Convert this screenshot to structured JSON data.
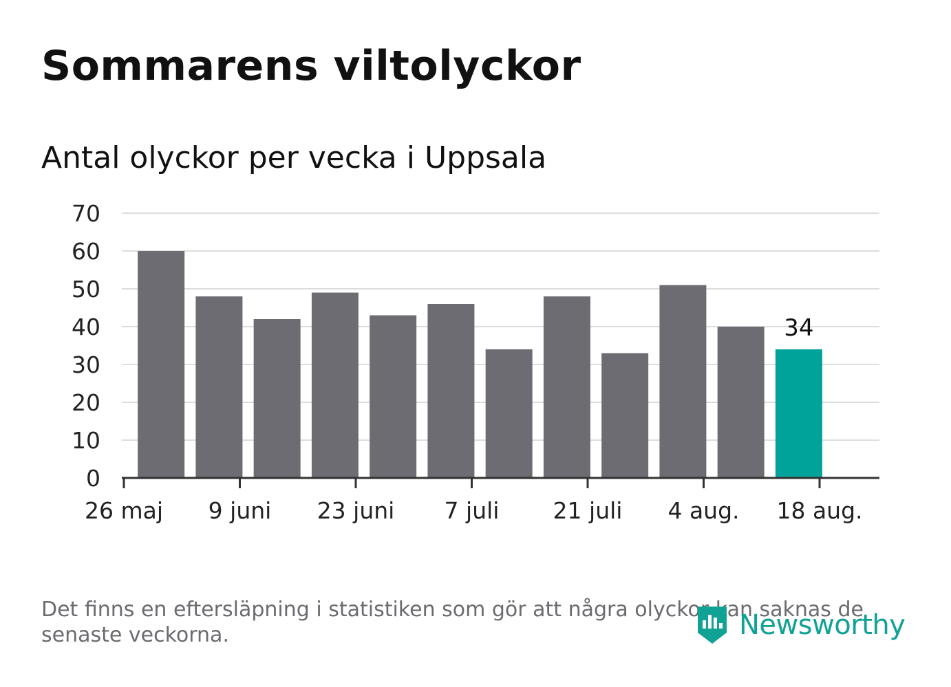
{
  "title": "Sommarens viltolyckor",
  "subtitle": "Antal olyckor per vecka i Uppsala",
  "note": "Det finns en eftersläpning i statistiken som gör att några olyckor kan saknas de senaste veckorna.",
  "brand": {
    "name": "Newsworthy",
    "icon": "newsworthy-logo-icon",
    "color": "#10a294"
  },
  "colors": {
    "bar": "#6d6c72",
    "highlight": "#00a39a",
    "grid": "#dddddd",
    "axis": "#333333"
  },
  "chart_data": {
    "type": "bar",
    "title": "Sommarens viltolyckor",
    "subtitle": "Antal olyckor per vecka i Uppsala",
    "xlabel": "",
    "ylabel": "",
    "ylim": [
      0,
      70
    ],
    "yticks": [
      0,
      10,
      20,
      30,
      40,
      50,
      60,
      70
    ],
    "grid": true,
    "x": [
      "2019-05-27",
      "2019-06-03",
      "2019-06-10",
      "2019-06-17",
      "2019-06-24",
      "2019-07-01",
      "2019-07-08",
      "2019-07-15",
      "2019-07-22",
      "2019-07-29",
      "2019-08-05",
      "2019-08-12"
    ],
    "values": [
      60,
      48,
      42,
      49,
      43,
      46,
      34,
      48,
      33,
      51,
      40,
      34
    ],
    "highlight_index": 11,
    "data_labels": [
      {
        "x": "2019-08-12",
        "text": "34"
      }
    ],
    "xticks": [
      {
        "x": "2019-05-26",
        "label": "26 maj"
      },
      {
        "x": "2019-06-09",
        "label": "9 juni"
      },
      {
        "x": "2019-06-23",
        "label": "23 juni"
      },
      {
        "x": "2019-07-07",
        "label": "7 juli"
      },
      {
        "x": "2019-07-21",
        "label": "21 juli"
      },
      {
        "x": "2019-08-04",
        "label": "4 aug."
      },
      {
        "x": "2019-08-18",
        "label": "18 aug."
      }
    ]
  }
}
